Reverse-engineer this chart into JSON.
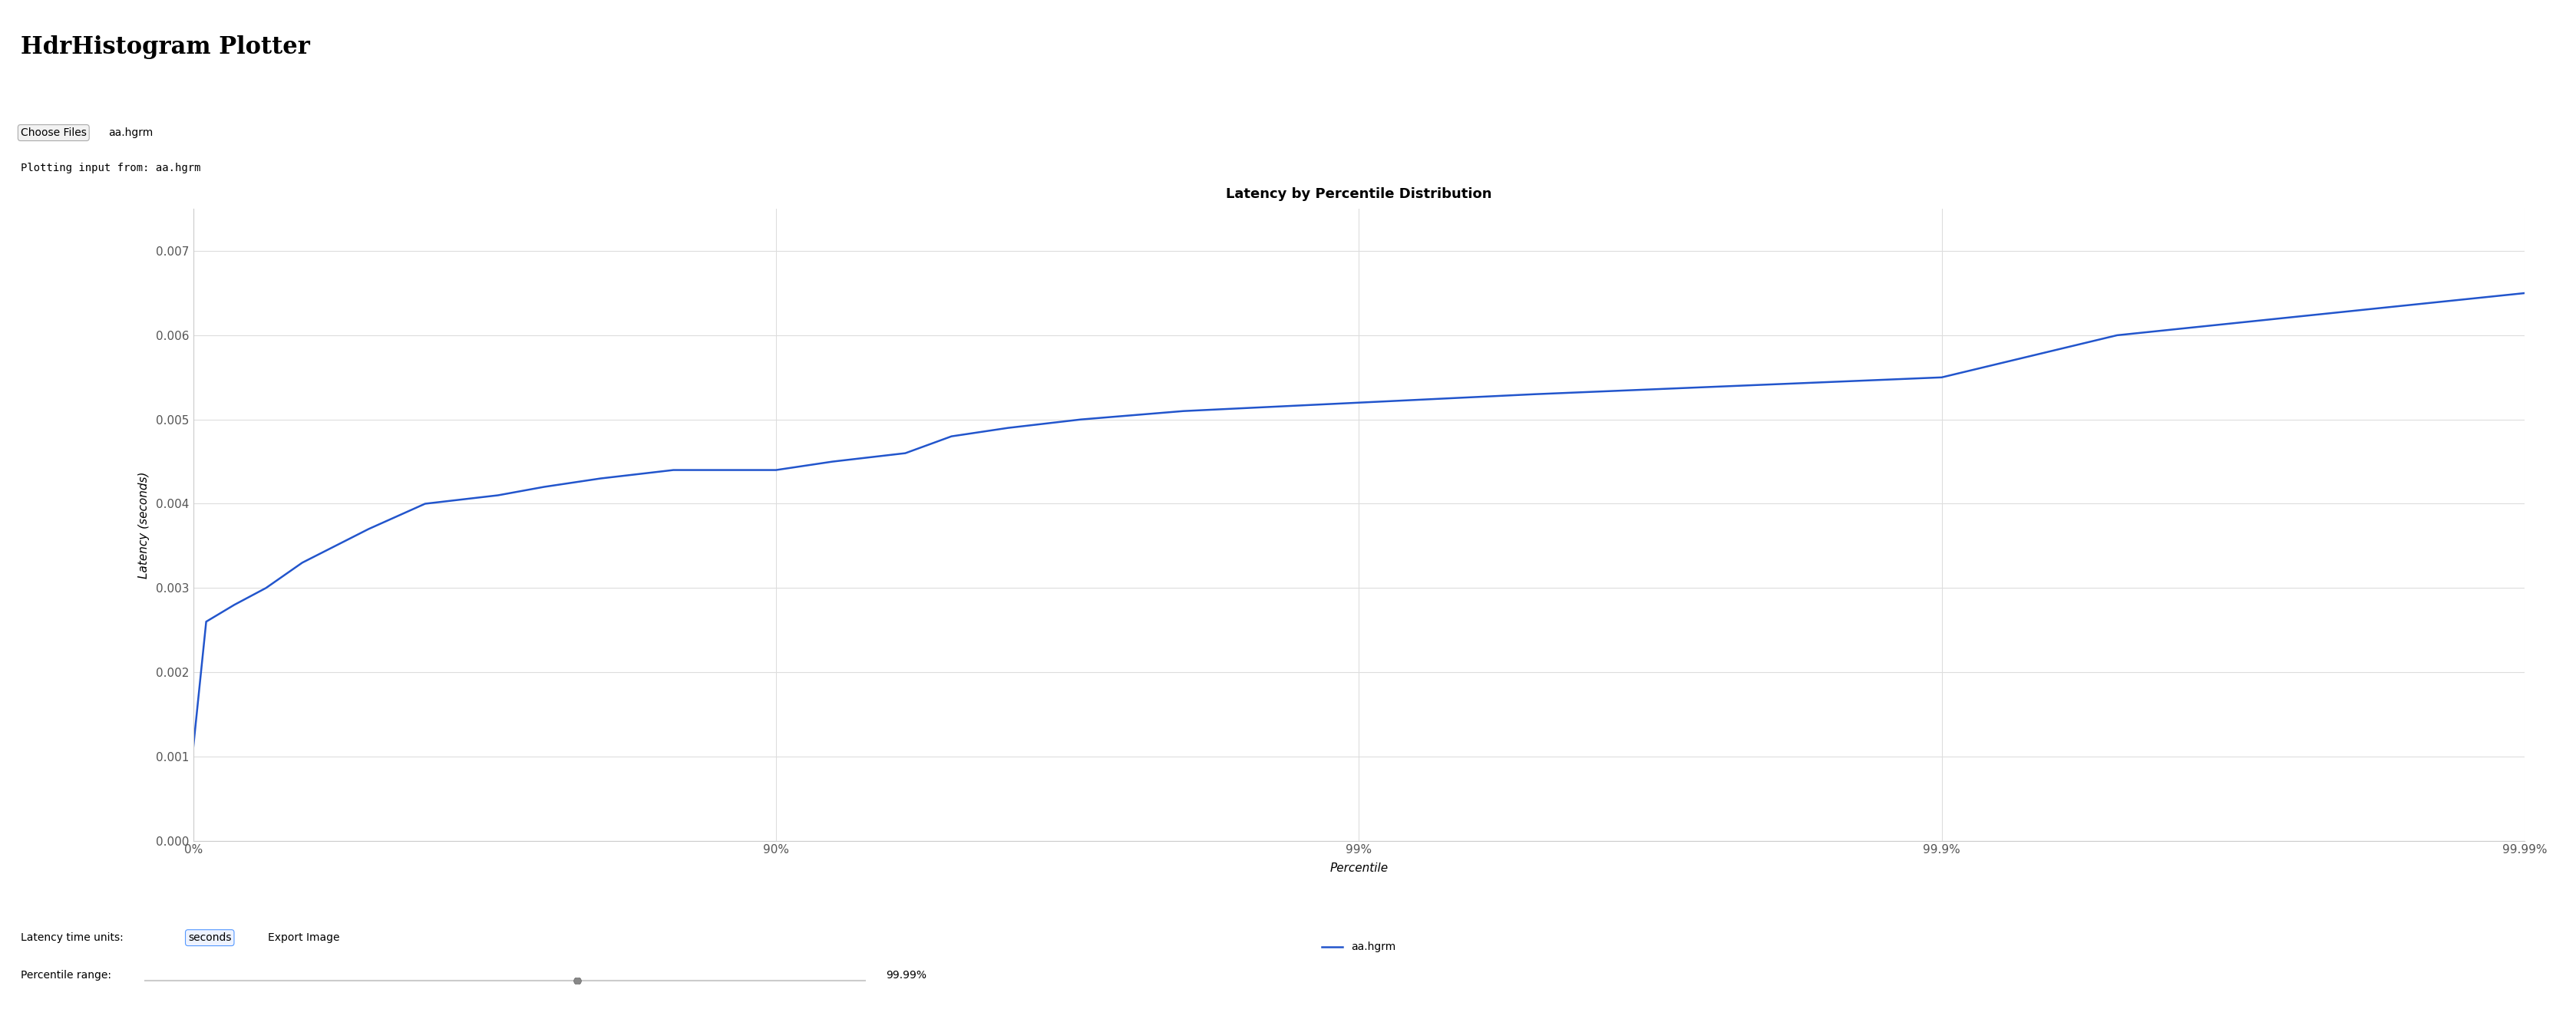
{
  "title": "Latency by Percentile Distribution",
  "xlabel": "Percentile",
  "ylabel": "Latency (seconds)",
  "legend_label": "aa.hgrm",
  "line_color": "#2255cc",
  "background_color": "#ffffff",
  "plot_bg_color": "#ffffff",
  "grid_color": "#dddddd",
  "ylim": [
    0.0,
    0.0075
  ],
  "yticks": [
    0.0,
    0.001,
    0.002,
    0.003,
    0.004,
    0.005,
    0.006,
    0.007
  ],
  "xtick_labels": [
    "0%",
    "90%",
    "99%",
    "99.9%",
    "99.99%"
  ],
  "header_title": "HdrHistogram Plotter",
  "file_label": "aa.hgrm",
  "plotting_text": "Plotting input from: aa.hgrm",
  "latency_units_label": "Latency time units:",
  "units_value": "seconds",
  "export_label": "Export Image",
  "percentile_range_label": "Percentile range:",
  "percentile_range_value": "99.99%",
  "pct_curve": [
    0,
    5,
    15,
    25,
    35,
    50,
    60,
    70,
    75,
    80,
    85,
    90,
    92,
    94,
    95,
    96,
    97,
    98,
    99,
    99.5,
    99.9,
    99.95,
    99.99
  ],
  "lat_curve": [
    0.0011,
    0.0026,
    0.0028,
    0.003,
    0.0033,
    0.0037,
    0.004,
    0.0041,
    0.0042,
    0.0043,
    0.0044,
    0.0044,
    0.0045,
    0.0046,
    0.0048,
    0.0049,
    0.005,
    0.0051,
    0.0052,
    0.0053,
    0.0055,
    0.006,
    0.0065
  ],
  "pct_ticks": [
    0,
    90,
    99,
    99.9,
    99.99
  ],
  "tick_color": "#555555",
  "spine_color": "#cccccc",
  "header_fontsize": 22,
  "ui_fontsize": 10,
  "title_fontsize": 13,
  "axis_label_fontsize": 11,
  "tick_fontsize": 11,
  "legend_fontsize": 10
}
